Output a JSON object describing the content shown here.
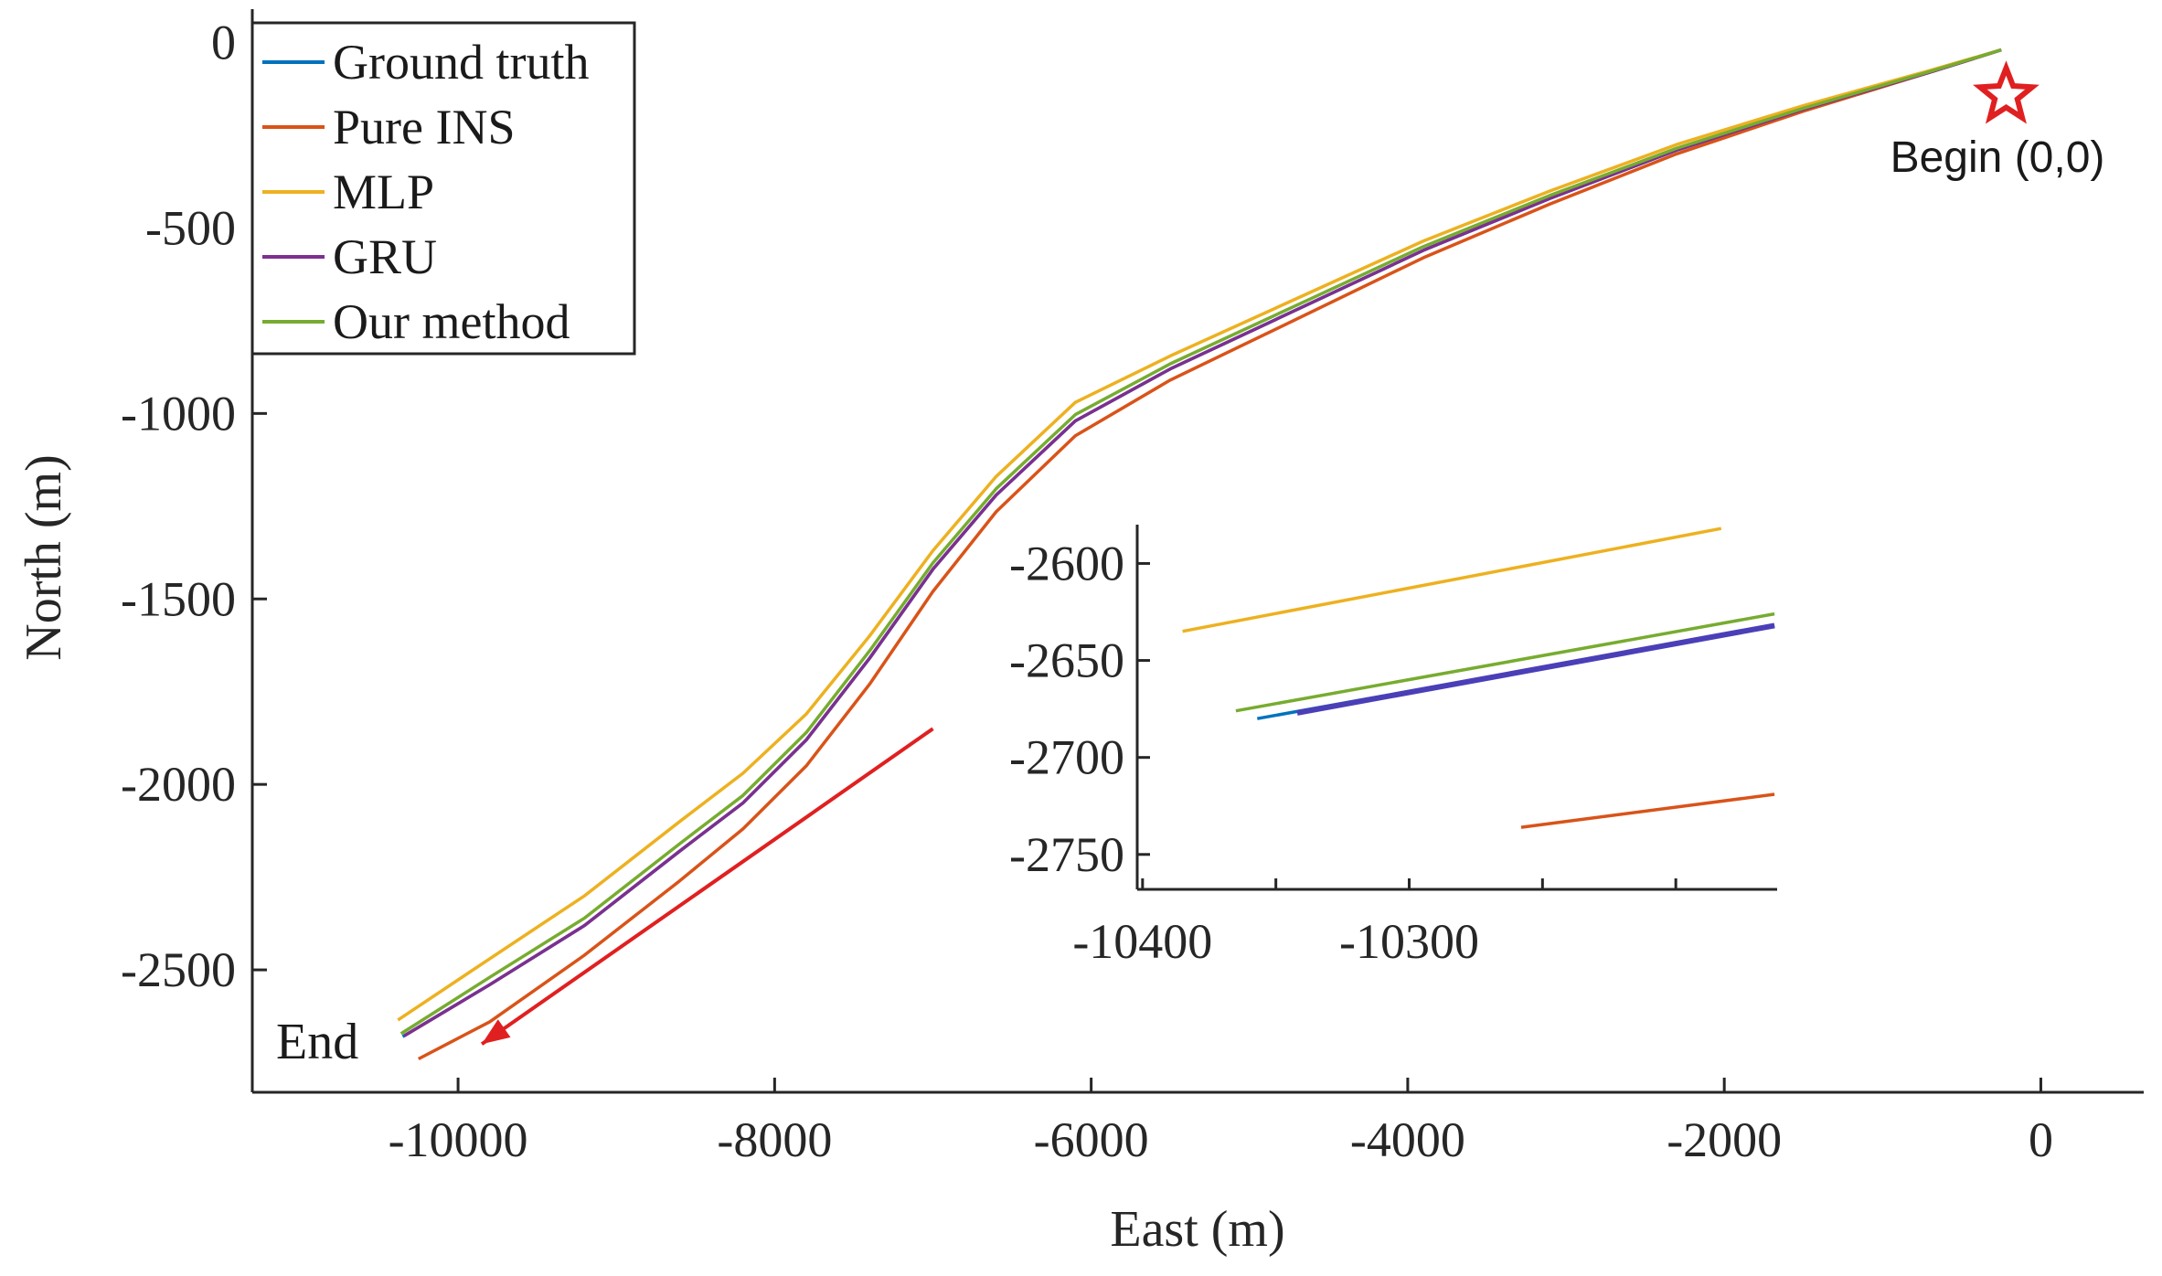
{
  "chart_data": [
    {
      "type": "line",
      "title": "",
      "xlabel": "East (m)",
      "ylabel": "North (m)",
      "xlim": [
        -11300,
        650
      ],
      "ylim": [
        -2830,
        90
      ],
      "xticks": [
        -10000,
        -8000,
        -6000,
        -4000,
        -2000,
        0
      ],
      "yticks": [
        0,
        -500,
        -1000,
        -1500,
        -2000,
        -2500
      ],
      "xtick_labels": [
        "-10000",
        "-8000",
        "-6000",
        "-4000",
        "-2000",
        "0"
      ],
      "ytick_labels": [
        "0",
        "-500",
        "-1000",
        "-1500",
        "-2000",
        "-2500"
      ],
      "grid": false,
      "legend": "top-left",
      "series": [
        {
          "name": "Ground truth",
          "color": "#0072BD",
          "x": [
            -250,
            -700,
            -1500,
            -2300,
            -3100,
            -3900,
            -4700,
            -5500,
            -6100,
            -6600,
            -7000,
            -7400,
            -7800,
            -8200,
            -8600,
            -9200,
            -9800,
            -10350
          ],
          "y": [
            -20,
            -80,
            -180,
            -290,
            -420,
            -560,
            -720,
            -880,
            -1020,
            -1220,
            -1420,
            -1660,
            -1880,
            -2050,
            -2180,
            -2380,
            -2540,
            -2680
          ]
        },
        {
          "name": "Pure INS",
          "color": "#D95319",
          "x": [
            -250,
            -700,
            -1500,
            -2300,
            -3100,
            -3900,
            -4700,
            -5500,
            -6100,
            -6600,
            -7000,
            -7400,
            -7800,
            -8200,
            -8600,
            -9200,
            -9800,
            -10250
          ],
          "y": [
            -20,
            -80,
            -185,
            -300,
            -435,
            -580,
            -745,
            -910,
            -1060,
            -1265,
            -1480,
            -1730,
            -1950,
            -2120,
            -2260,
            -2460,
            -2640,
            -2740
          ]
        },
        {
          "name": "MLP",
          "color": "#EDB120",
          "x": [
            -250,
            -700,
            -1500,
            -2300,
            -3100,
            -3900,
            -4700,
            -5500,
            -6100,
            -6600,
            -7000,
            -7400,
            -7800,
            -8200,
            -8600,
            -9200,
            -9800,
            -10380
          ],
          "y": [
            -20,
            -75,
            -170,
            -275,
            -400,
            -535,
            -690,
            -845,
            -970,
            -1170,
            -1370,
            -1600,
            -1810,
            -1970,
            -2100,
            -2300,
            -2470,
            -2635
          ]
        },
        {
          "name": "GRU",
          "color": "#7E2F8E",
          "x": [
            -250,
            -700,
            -1500,
            -2300,
            -3100,
            -3900,
            -4700,
            -5500,
            -6100,
            -6600,
            -7000,
            -7400,
            -7800,
            -8200,
            -8600,
            -9200,
            -9800,
            -10340
          ],
          "y": [
            -20,
            -80,
            -180,
            -290,
            -420,
            -560,
            -720,
            -880,
            -1020,
            -1220,
            -1420,
            -1660,
            -1880,
            -2050,
            -2180,
            -2380,
            -2540,
            -2678
          ]
        },
        {
          "name": "Our method",
          "color": "#77AC30",
          "x": [
            -250,
            -700,
            -1500,
            -2300,
            -3100,
            -3900,
            -4700,
            -5500,
            -6100,
            -6600,
            -7000,
            -7400,
            -7800,
            -8200,
            -8600,
            -9200,
            -9800,
            -10360
          ],
          "y": [
            -20,
            -78,
            -177,
            -285,
            -412,
            -550,
            -708,
            -866,
            -1003,
            -1203,
            -1403,
            -1640,
            -1860,
            -2030,
            -2160,
            -2360,
            -2520,
            -2672
          ]
        }
      ],
      "annotations": [
        {
          "text": "Begin (0,0)",
          "x": 0,
          "y": 0,
          "marker": "star",
          "color": "#E02020"
        },
        {
          "text": "End",
          "x": -10400,
          "y": -2700
        }
      ],
      "arrow": {
        "color": "#E02020",
        "from": [
          -7000,
          -1850
        ],
        "to": [
          -9850,
          -2700
        ]
      }
    },
    {
      "type": "line",
      "title": "",
      "xlabel": "",
      "ylabel": "",
      "xlim": [
        -10402,
        -10162
      ],
      "ylim": [
        -2768,
        -2580
      ],
      "xticks": [
        -10400,
        -10300
      ],
      "yticks": [
        -2600,
        -2650,
        -2700,
        -2750
      ],
      "xtick_labels": [
        "-10400",
        "-10300"
      ],
      "ytick_labels": [
        "-2600",
        "-2650",
        "-2700",
        "-2750"
      ],
      "grid": false,
      "series": [
        {
          "name": "Ground truth",
          "color": "#0072BD",
          "x": [
            -10357,
            -10163
          ],
          "y": [
            -2680,
            -2632
          ]
        },
        {
          "name": "Pure INS",
          "color": "#D95319",
          "x": [
            -10258,
            -10163
          ],
          "y": [
            -2736,
            -2719
          ]
        },
        {
          "name": "MLP",
          "color": "#EDB120",
          "x": [
            -10385,
            -10183
          ],
          "y": [
            -2635,
            -2582
          ]
        },
        {
          "name": "GRU",
          "color": "#4B3FB8",
          "x": [
            -10342,
            -10163
          ],
          "y": [
            -2677,
            -2632
          ]
        },
        {
          "name": "Our method",
          "color": "#77AC30",
          "x": [
            -10365,
            -10163
          ],
          "y": [
            -2676,
            -2626
          ]
        }
      ]
    }
  ]
}
